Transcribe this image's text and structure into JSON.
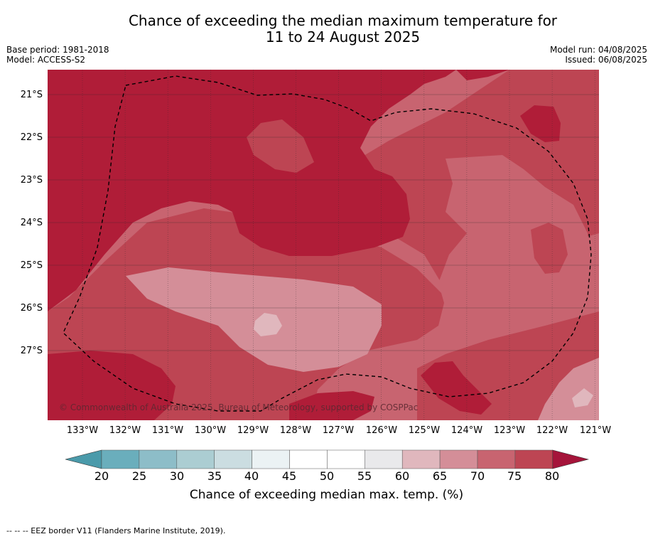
{
  "header": {
    "title_line1": "Chance of exceeding the median maximum temperature for",
    "title_line2": "11 to 24 August 2025",
    "base_period": "Base period: 1981-2018",
    "model": "Model: ACCESS-S2",
    "model_run": "Model run: 04/08/2025",
    "issued": "Issued: 06/08/2025"
  },
  "map": {
    "lat_labels": [
      "21°S",
      "22°S",
      "23°S",
      "24°S",
      "25°S",
      "26°S",
      "27°S"
    ],
    "lon_labels": [
      "133°W",
      "132°W",
      "131°W",
      "130°W",
      "129°W",
      "128°W",
      "127°W",
      "126°W",
      "125°W",
      "124°W",
      "123°W",
      "122°W",
      "121°W"
    ],
    "copyright": "© Commonwealth of Australia 2025, Bureau of Meteorology, supported by COSPPac",
    "colors": {
      "band_60_65": "#e0b7bd",
      "band_65_70": "#d48e98",
      "band_70_75": "#c86470",
      "band_75_80": "#bd4553",
      "band_80_plus": "#b01d38",
      "eez_border": "#000000"
    }
  },
  "colorbar": {
    "ticks": [
      "20",
      "25",
      "30",
      "35",
      "40",
      "45",
      "50",
      "55",
      "60",
      "65",
      "70",
      "75",
      "80"
    ],
    "under_color": "#4a9aaa",
    "over_color": "#a5143a",
    "colors": [
      "#6aaebc",
      "#8dbdc8",
      "#abcdd2",
      "#cbdde1",
      "#ebf2f4",
      "#ffffff",
      "#ffffff",
      "#e9e9eb",
      "#e0b7bd",
      "#d48e98",
      "#c86470",
      "#bd4553"
    ],
    "label": "Chance of exceeding median max. temp. (%)"
  },
  "legend": {
    "eez_note": "-- -- -- EEZ border V11 (Flanders Marine Institute, 2019)."
  }
}
